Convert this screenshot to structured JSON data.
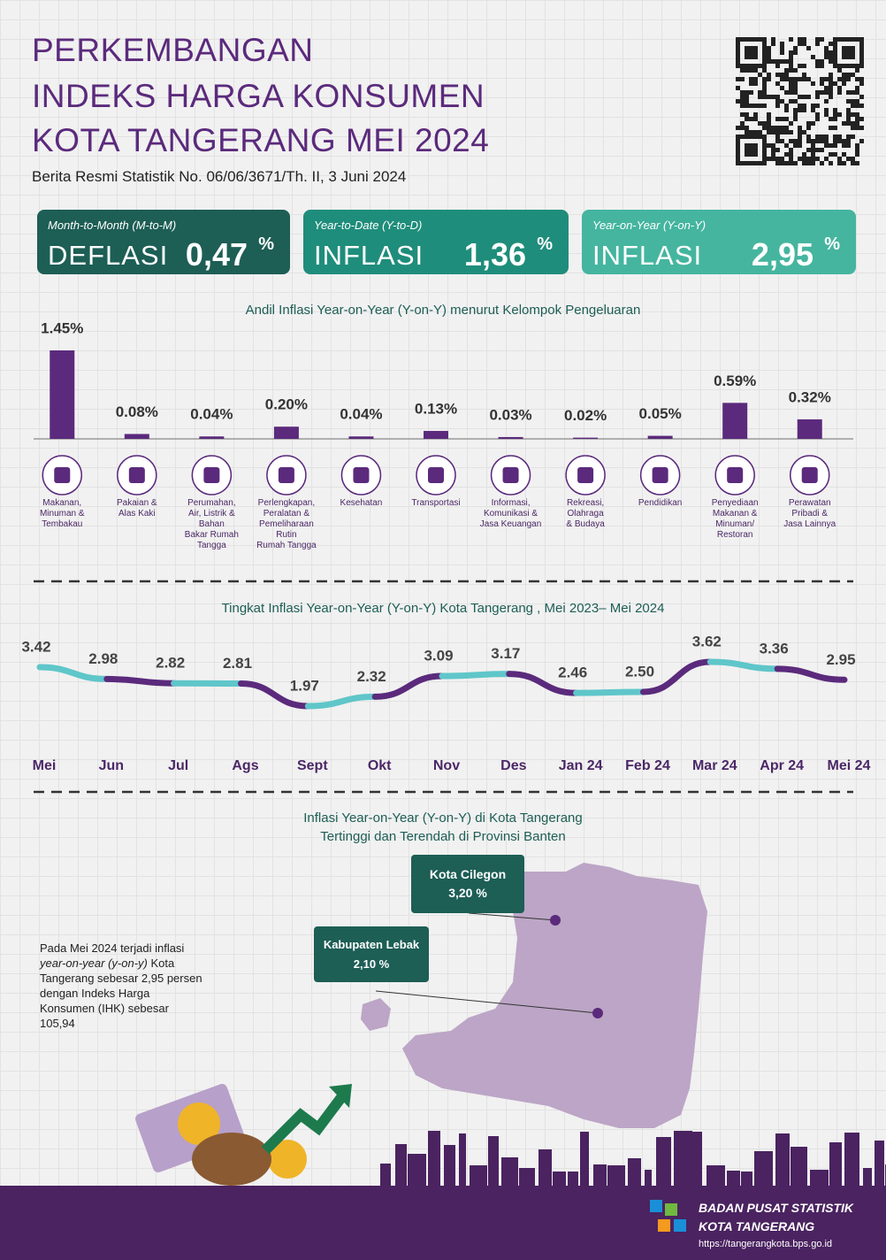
{
  "header": {
    "title_lines": [
      "PERKEMBANGAN",
      "INDEKS HARGA KONSUMEN",
      "KOTA TANGERANG MEI 2024"
    ],
    "subtitle": "Berita Resmi Statistik No. 06/06/3671/Th. II, 3 Juni 2024"
  },
  "cards": [
    {
      "period": "Month-to-Month (M-to-M)",
      "label": "DEFLASI",
      "value": "0,47",
      "unit": "%",
      "color": "#1d5e55"
    },
    {
      "period": "Year-to-Date (Y-to-D)",
      "label": "INFLASI",
      "value": "1,36",
      "unit": "%",
      "color": "#1f8d7b"
    },
    {
      "period": "Year-on-Year (Y-on-Y)",
      "label": "INFLASI",
      "value": "2,95",
      "unit": "%",
      "color": "#45b59f"
    }
  ],
  "chart_data": [
    {
      "type": "bar",
      "title": "Andil Inflasi Year-on-Year (Y-on-Y) menurut Kelompok Pengeluaran",
      "categories": [
        "Makanan,\nMinuman &\nTembakau",
        "Pakaian &\nAlas Kaki",
        "Perumahan,\nAir, Listrik &\nBahan\nBakar Rumah\nTangga",
        "Perlengkapan,\nPeralatan &\nPemeliharaan\nRutin\nRumah Tangga",
        "Kesehatan",
        "Transportasi",
        "Informasi,\nKomunikasi &\nJasa Keuangan",
        "Rekreasi,\nOlahraga\n& Budaya",
        "Pendidikan",
        "Penyediaan\nMakanan &\nMinuman/\nRestoran",
        "Perawatan\nPribadi &\nJasa Lainnya"
      ],
      "values": [
        1.45,
        0.08,
        0.04,
        0.2,
        0.04,
        0.13,
        0.03,
        0.02,
        0.05,
        0.59,
        0.32
      ],
      "value_labels": [
        "1.45%",
        "0.08%",
        "0.04%",
        "0.20%",
        "0.04%",
        "0.13%",
        "0.03%",
        "0.02%",
        "0.05%",
        "0.59%",
        "0.32%"
      ],
      "color": "#5b2a7c"
    },
    {
      "type": "line",
      "title": "Tingkat Inflasi Year-on-Year (Y-on-Y) Kota Tangerang , Mei 2023– Mei 2024",
      "categories": [
        "Mei",
        "Jun",
        "Jul",
        "Ags",
        "Sept",
        "Okt",
        "Nov",
        "Des",
        "Jan 24",
        "Feb 24",
        "Mar 24",
        "Apr 24",
        "Mei 24"
      ],
      "values": [
        3.42,
        2.98,
        2.82,
        2.81,
        1.97,
        2.32,
        3.09,
        3.17,
        2.46,
        2.5,
        3.62,
        3.36,
        2.95
      ],
      "value_labels": [
        "3.42",
        "2.98",
        "2.82",
        "2.81",
        "1.97",
        "2.32",
        "3.09",
        "3.17",
        "2.46",
        "2.50",
        "3.62",
        "3.36",
        "2.95"
      ],
      "segment_colors": [
        "#5fc6c9",
        "#5b2a7c"
      ]
    }
  ],
  "map": {
    "title_lines": [
      "Inflasi Year-on-Year (Y-on-Y) di Kota Tangerang",
      "Tertinggi dan Terendah di Provinsi Banten"
    ],
    "callouts": [
      {
        "name": "Kota Cilegon",
        "value": "3,20 %"
      },
      {
        "name": "Kabupaten Lebak",
        "value": "2,10 %"
      }
    ]
  },
  "note": [
    {
      "text": "Pada Mei 2024 terjadi inflasi "
    },
    {
      "text": "year-on-year (y-on-y)",
      "italic": true
    },
    {
      "text": " Kota Tangerang sebesar 2,95 persen dengan Indeks Harga Konsumen (IHK) sebesar 105,94"
    }
  ],
  "footer": {
    "org_lines": [
      "BADAN PUSAT STATISTIK",
      "KOTA TANGERANG"
    ],
    "url": "https://tangerangkota.bps.go.id"
  }
}
